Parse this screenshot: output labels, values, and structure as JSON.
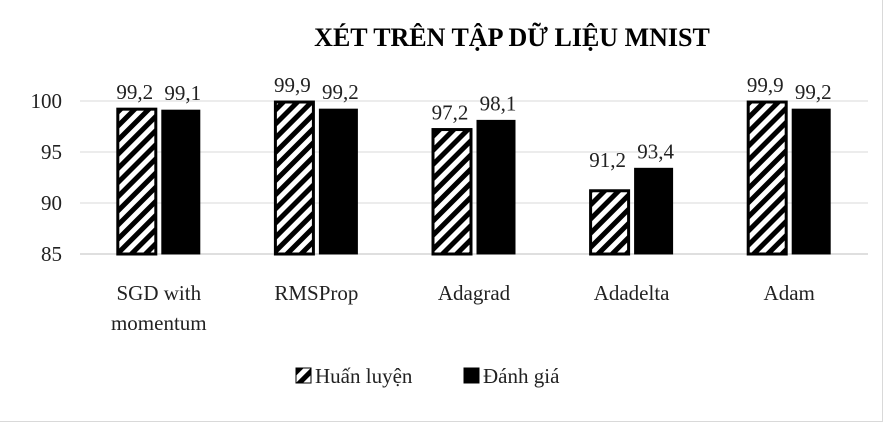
{
  "chart_data": {
    "type": "bar",
    "title": "XÉT TRÊN TẬP DỮ LIỆU MNIST",
    "categories": [
      [
        "SGD with",
        "momentum"
      ],
      [
        "RMSProp"
      ],
      [
        "Adagrad"
      ],
      [
        "Adadelta"
      ],
      [
        "Adam"
      ]
    ],
    "series": [
      {
        "name": "Huấn luyện",
        "values": [
          99.2,
          99.9,
          97.2,
          91.2,
          99.9
        ],
        "labels": [
          "99,2",
          "99,9",
          "97,2",
          "91,2",
          "99,9"
        ],
        "pattern": "diagonal-hatch",
        "color": "#000000"
      },
      {
        "name": "Đánh giá",
        "values": [
          99.1,
          99.2,
          98.1,
          93.4,
          99.2
        ],
        "labels": [
          "99,1",
          "99,2",
          "98,1",
          "93,4",
          "99,2"
        ],
        "pattern": "solid",
        "color": "#000000"
      }
    ],
    "ylim": [
      85,
      100
    ],
    "yticks": [
      "85",
      "90",
      "95",
      "100"
    ],
    "xlabel": "",
    "ylabel": "",
    "grid": true,
    "legend": "bottom"
  }
}
